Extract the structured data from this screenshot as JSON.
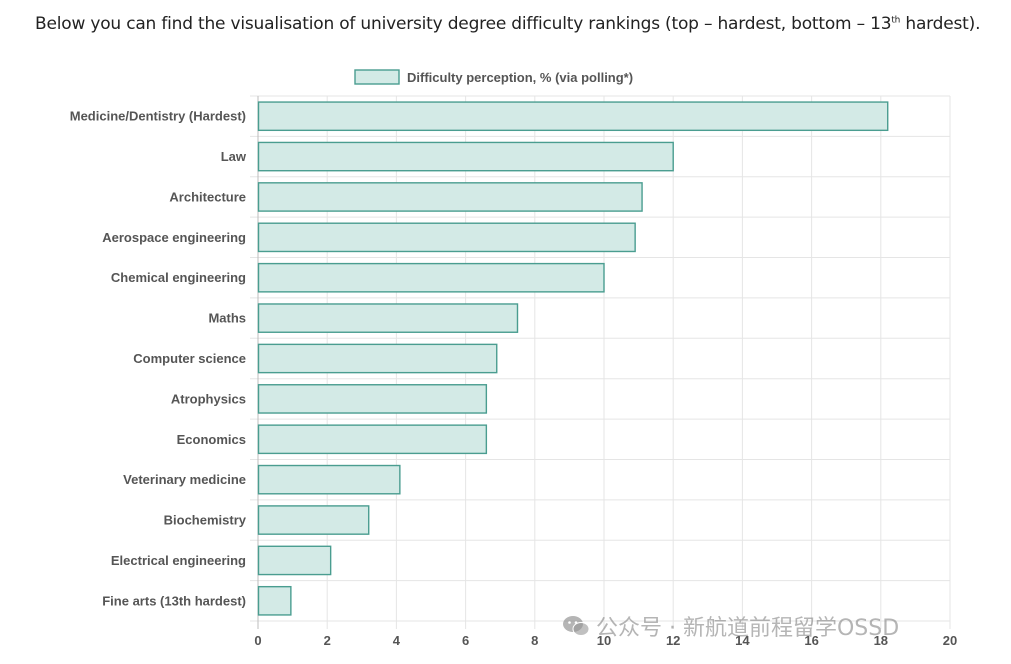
{
  "intro": {
    "before": "Below you can find the visualisation of university degree difficulty rankings (top – hardest, bottom – 13",
    "sup": "th",
    "after": " hardest)."
  },
  "watermark": {
    "icon": "wechat-icon",
    "text": "公众号 · 新航道前程留学OSSD"
  },
  "colors": {
    "bar_fill": "#d3eae6",
    "bar_stroke": "#4a9d90",
    "grid": "#e5e5e5",
    "label": "#555555"
  },
  "chart_data": {
    "type": "bar",
    "orientation": "horizontal",
    "legend": {
      "label": "Difficulty perception, % (via polling*)",
      "position": "top"
    },
    "categories": [
      "Medicine/Dentistry (Hardest)",
      "Law",
      "Architecture",
      "Aerospace engineering",
      "Chemical engineering",
      "Maths",
      "Computer science",
      "Atrophysics",
      "Economics",
      "Veterinary medicine",
      "Biochemistry",
      "Electrical engineering",
      "Fine arts (13th hardest)"
    ],
    "series": [
      {
        "name": "Difficulty perception, % (via polling*)",
        "values": [
          18.2,
          12.0,
          11.1,
          10.9,
          10.0,
          7.5,
          6.9,
          6.6,
          6.6,
          4.1,
          3.2,
          2.1,
          0.95
        ]
      }
    ],
    "xlim": [
      0,
      20
    ],
    "xticks": [
      0,
      2,
      4,
      6,
      8,
      10,
      12,
      14,
      16,
      18,
      20
    ],
    "grid": true
  }
}
